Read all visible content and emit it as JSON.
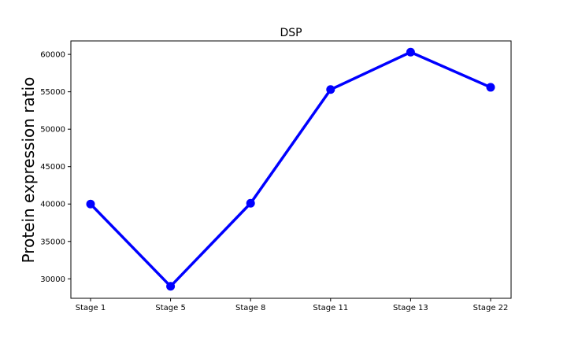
{
  "chart_data": {
    "type": "line",
    "title": "DSP",
    "xlabel": "",
    "ylabel": "Protein expression ratio",
    "categories": [
      "Stage 1",
      "Stage 5",
      "Stage 8",
      "Stage 11",
      "Stage 13",
      "Stage 22"
    ],
    "series": [
      {
        "values": [
          40000,
          29000,
          40100,
          55300,
          60300,
          55600
        ]
      }
    ],
    "ylim": [
      27400,
      61800
    ],
    "yticks": [
      30000,
      35000,
      40000,
      45000,
      50000,
      55000,
      60000
    ],
    "grid": false,
    "line_color": "#0000ff",
    "marker_color": "#0000ff"
  }
}
